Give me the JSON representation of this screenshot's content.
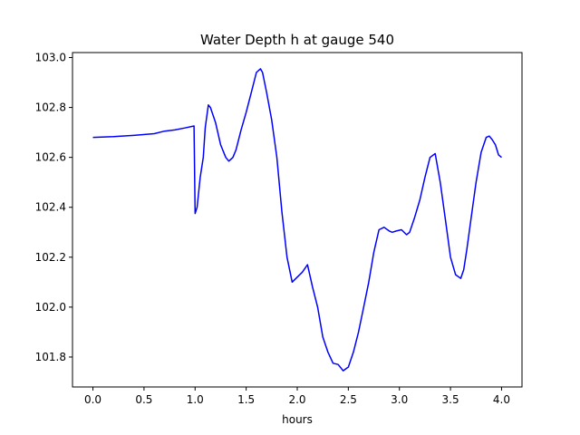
{
  "chart_data": {
    "type": "line",
    "title": "Water Depth h at gauge 540",
    "xlabel": "hours",
    "ylabel": "",
    "xlim": [
      -0.2,
      4.2
    ],
    "ylim": [
      101.68,
      103.02
    ],
    "xticks": [
      0.0,
      0.5,
      1.0,
      1.5,
      2.0,
      2.5,
      3.0,
      3.5,
      4.0
    ],
    "xtick_labels": [
      "0.0",
      "0.5",
      "1.0",
      "1.5",
      "2.0",
      "2.5",
      "3.0",
      "3.5",
      "4.0"
    ],
    "yticks": [
      101.8,
      102.0,
      102.2,
      102.4,
      102.6,
      102.8,
      103.0
    ],
    "ytick_labels": [
      "101.8",
      "102.0",
      "102.2",
      "102.4",
      "102.6",
      "102.8",
      "103.0"
    ],
    "grid": false,
    "series": [
      {
        "color": "#0000ff",
        "x": [
          0.0,
          0.2,
          0.4,
          0.6,
          0.7,
          0.8,
          0.9,
          0.99,
          1.0,
          1.02,
          1.05,
          1.08,
          1.1,
          1.13,
          1.15,
          1.2,
          1.25,
          1.3,
          1.33,
          1.37,
          1.4,
          1.45,
          1.5,
          1.55,
          1.6,
          1.64,
          1.66,
          1.7,
          1.75,
          1.8,
          1.85,
          1.9,
          1.95,
          2.0,
          2.05,
          2.1,
          2.15,
          2.2,
          2.25,
          2.3,
          2.35,
          2.4,
          2.45,
          2.5,
          2.55,
          2.6,
          2.65,
          2.7,
          2.75,
          2.8,
          2.85,
          2.9,
          2.93,
          2.97,
          3.02,
          3.07,
          3.1,
          3.15,
          3.2,
          3.25,
          3.3,
          3.35,
          3.4,
          3.45,
          3.5,
          3.55,
          3.6,
          3.63,
          3.66,
          3.7,
          3.75,
          3.8,
          3.85,
          3.88,
          3.91,
          3.94,
          3.97,
          4.0
        ],
        "y": [
          102.68,
          102.683,
          102.688,
          102.695,
          102.705,
          102.71,
          102.718,
          102.726,
          102.375,
          102.4,
          102.52,
          102.6,
          102.72,
          102.81,
          102.8,
          102.74,
          102.65,
          102.6,
          102.585,
          102.6,
          102.63,
          102.71,
          102.78,
          102.86,
          102.94,
          102.955,
          102.94,
          102.86,
          102.75,
          102.6,
          102.38,
          102.2,
          102.1,
          102.12,
          102.14,
          102.17,
          102.08,
          102.0,
          101.88,
          101.82,
          101.775,
          101.77,
          101.745,
          101.76,
          101.82,
          101.9,
          102.0,
          102.1,
          102.22,
          102.31,
          102.32,
          102.305,
          102.3,
          102.305,
          102.31,
          102.29,
          102.3,
          102.36,
          102.43,
          102.52,
          102.6,
          102.615,
          102.5,
          102.35,
          102.2,
          102.13,
          102.115,
          102.15,
          102.23,
          102.35,
          102.5,
          102.62,
          102.68,
          102.685,
          102.67,
          102.65,
          102.61,
          102.6
        ]
      }
    ]
  }
}
